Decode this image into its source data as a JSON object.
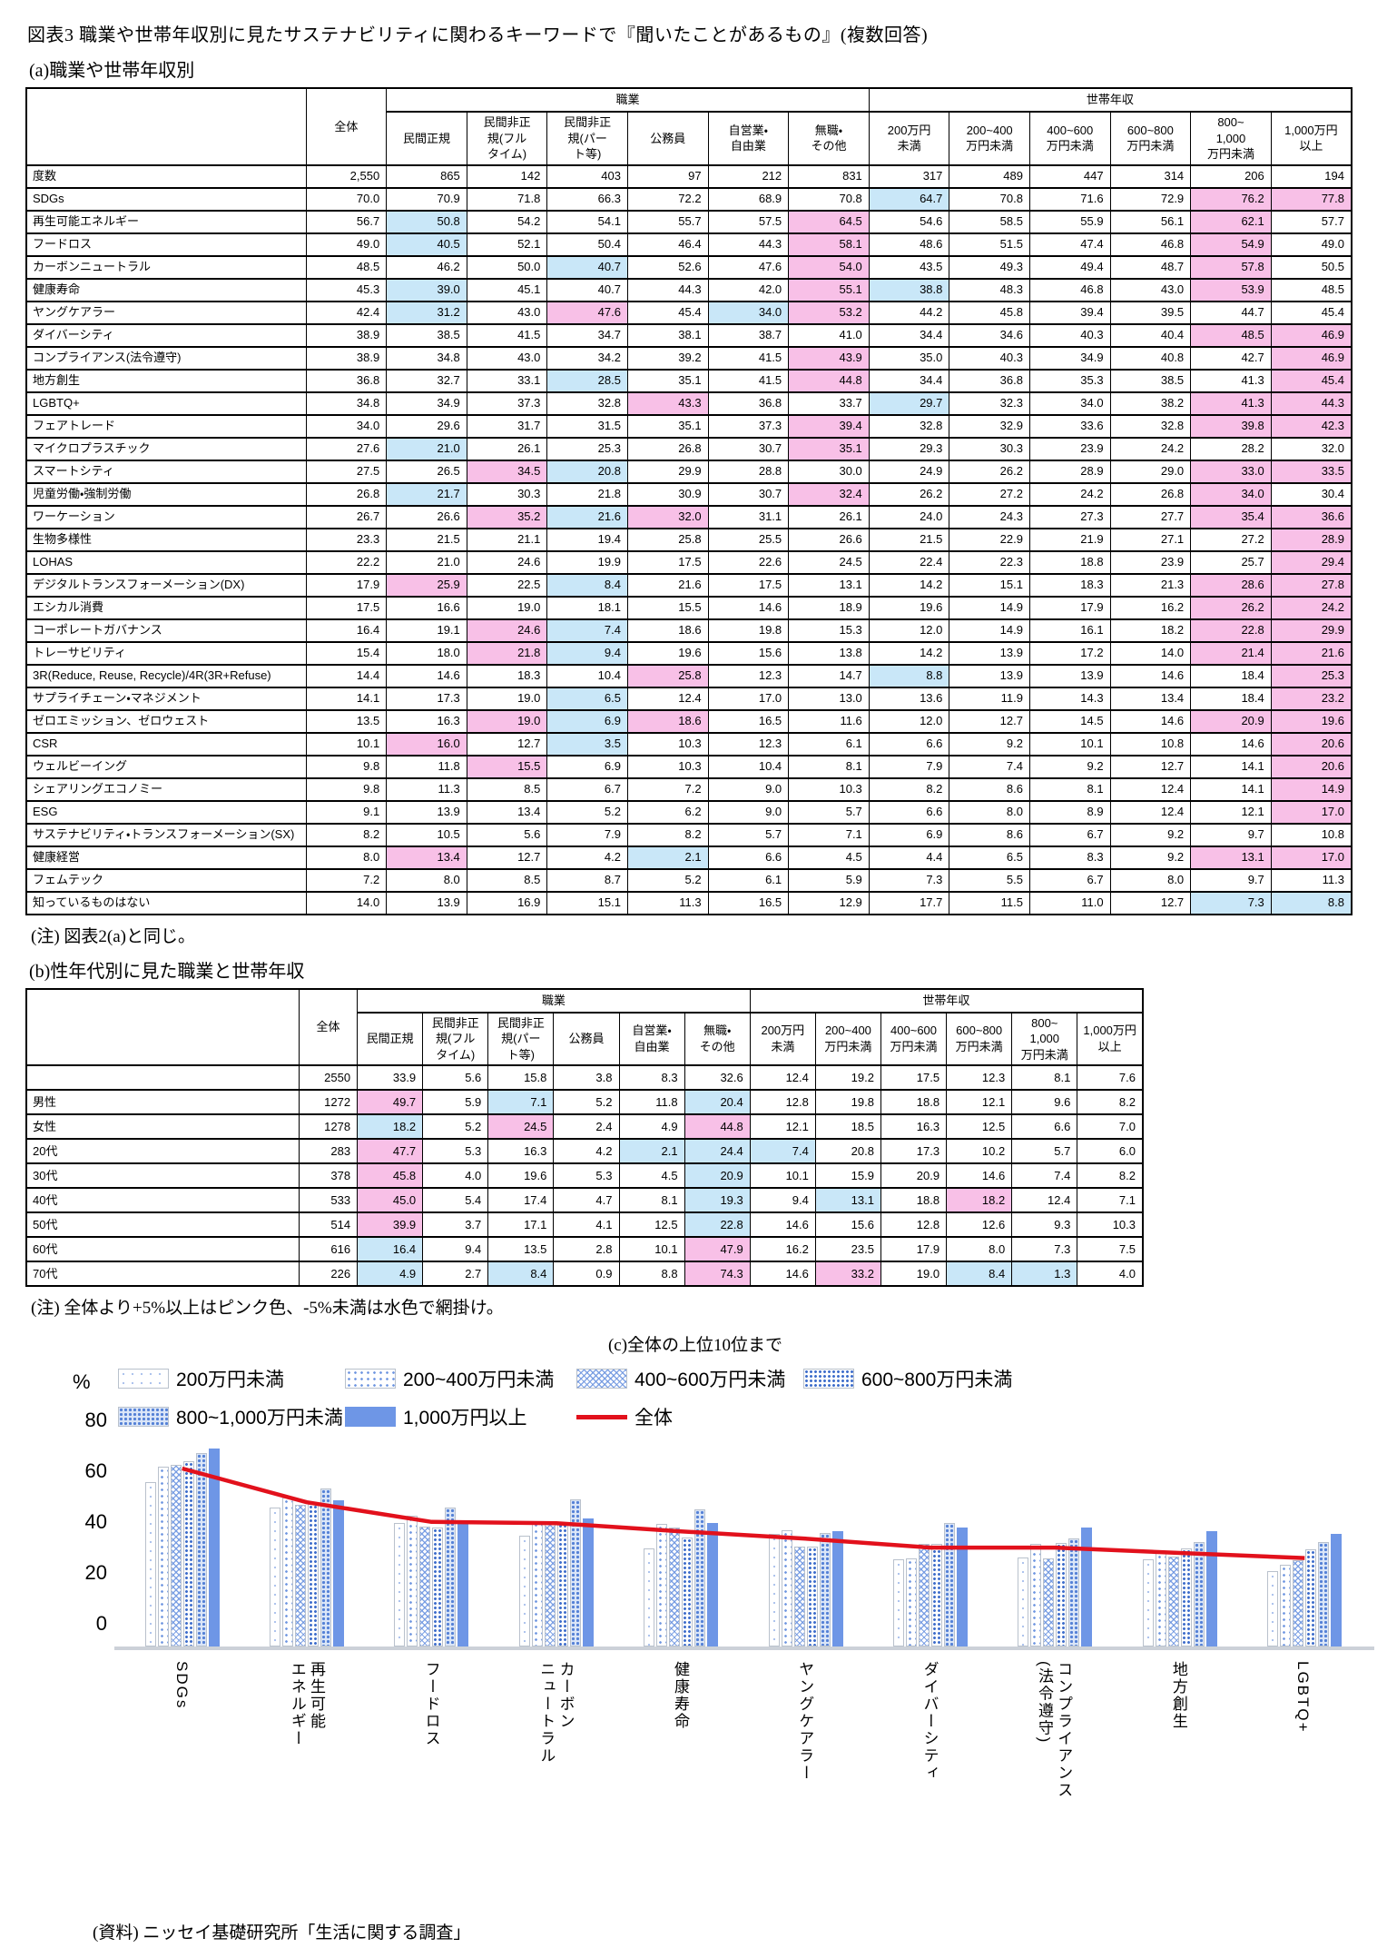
{
  "page": {
    "title": "図表3 職業や世帯年収別に見たサステナビリティに関わるキーワードで『聞いたことがあるもの』(複数回答)",
    "section_a_title": "(a)職業や世帯年収別",
    "note_a": "(注) 図表2(a)と同じ。",
    "section_b_title": "(b)性年代別に見た職業と世帯年収",
    "note_b": "(注) 全体より+5%以上はピンク色、-5%未満は水色で網掛け。",
    "section_c_title": "(c)全体の上位10位まで",
    "source": "(資料) ニッセイ基礎研究所「生活に関する調査」"
  },
  "colors": {
    "pink": "#f8c0e7",
    "light_blue": "#c9e7f8",
    "bar_solid": "#6e96e6",
    "line_red": "#e2111c"
  },
  "header": {
    "total": "全体",
    "groups": [
      {
        "label": "職業",
        "span": 6
      },
      {
        "label": "世帯年収",
        "span": 6
      }
    ],
    "columns": [
      "民間正規",
      "民間非正\n規(フル\nタイム)",
      "民間非正\n規(パー\nト等)",
      "公務員",
      "自営業・\n自由業",
      "無職・\nその他",
      "200万円\n未満",
      "200~400\n万円未満",
      "400~600\n万円未満",
      "600~800\n万円未満",
      "800~\n1,000\n万円未満",
      "1,000万円\n以上"
    ]
  },
  "table_a": {
    "rows": [
      {
        "label": "度数",
        "cells": [
          "2,550",
          "865",
          "142",
          "403",
          "97",
          "212",
          "831",
          "317",
          "489",
          "447",
          "314",
          "206",
          "194"
        ]
      },
      {
        "label": "SDGs",
        "cells": [
          "70.0",
          "70.9",
          "71.8",
          "66.3",
          "72.2",
          "68.9",
          "70.8",
          "64.7b",
          "70.8",
          "71.6",
          "72.9",
          "76.2p",
          "77.8p"
        ]
      },
      {
        "label": "再生可能エネルギー",
        "cells": [
          "56.7",
          "50.8b",
          "54.2",
          "54.1",
          "55.7",
          "57.5",
          "64.5p",
          "54.6",
          "58.5",
          "55.9",
          "56.1",
          "62.1p",
          "57.7"
        ]
      },
      {
        "label": "フードロス",
        "cells": [
          "49.0",
          "40.5b",
          "52.1",
          "50.4",
          "46.4",
          "44.3",
          "58.1p",
          "48.6",
          "51.5",
          "47.4",
          "46.8",
          "54.9p",
          "49.0"
        ]
      },
      {
        "label": "カーボンニュートラル",
        "cells": [
          "48.5",
          "46.2",
          "50.0",
          "40.7b",
          "52.6",
          "47.6",
          "54.0p",
          "43.5",
          "49.3",
          "49.4",
          "48.7",
          "57.8p",
          "50.5"
        ]
      },
      {
        "label": "健康寿命",
        "cells": [
          "45.3",
          "39.0b",
          "45.1",
          "40.7",
          "44.3",
          "42.0",
          "55.1p",
          "38.8b",
          "48.3",
          "46.8",
          "43.0",
          "53.9p",
          "48.5"
        ]
      },
      {
        "label": "ヤングケアラー",
        "cells": [
          "42.4",
          "31.2b",
          "43.0",
          "47.6p",
          "45.4",
          "34.0b",
          "53.2p",
          "44.2",
          "45.8",
          "39.4",
          "39.5",
          "44.7",
          "45.4"
        ]
      },
      {
        "label": "ダイバーシティ",
        "cells": [
          "38.9",
          "38.5",
          "41.5",
          "34.7",
          "38.1",
          "38.7",
          "41.0",
          "34.4",
          "34.6",
          "40.3",
          "40.4",
          "48.5p",
          "46.9p"
        ]
      },
      {
        "label": "コンプライアンス(法令遵守)",
        "cells": [
          "38.9",
          "34.8",
          "43.0",
          "34.2",
          "39.2",
          "41.5",
          "43.9p",
          "35.0",
          "40.3",
          "34.9",
          "40.8",
          "42.7",
          "46.9p"
        ]
      },
      {
        "label": "地方創生",
        "cells": [
          "36.8",
          "32.7",
          "33.1",
          "28.5b",
          "35.1",
          "41.5",
          "44.8p",
          "34.4",
          "36.8",
          "35.3",
          "38.5",
          "41.3",
          "45.4p"
        ]
      },
      {
        "label": "LGBTQ+",
        "cells": [
          "34.8",
          "34.9",
          "37.3",
          "32.8",
          "43.3p",
          "36.8",
          "33.7",
          "29.7b",
          "32.3",
          "34.0",
          "38.2",
          "41.3p",
          "44.3p"
        ]
      },
      {
        "label": "フェアトレード",
        "cells": [
          "34.0",
          "29.6",
          "31.7",
          "31.5",
          "35.1",
          "37.3",
          "39.4p",
          "32.8",
          "32.9",
          "33.6",
          "32.8",
          "39.8p",
          "42.3p"
        ]
      },
      {
        "label": "マイクロプラスチック",
        "cells": [
          "27.6",
          "21.0b",
          "26.1",
          "25.3",
          "26.8",
          "30.7",
          "35.1p",
          "29.3",
          "30.3",
          "23.9",
          "24.2",
          "28.2",
          "32.0"
        ]
      },
      {
        "label": "スマートシティ",
        "cells": [
          "27.5",
          "26.5",
          "34.5p",
          "20.8b",
          "29.9",
          "28.8",
          "30.0",
          "24.9",
          "26.2",
          "28.9",
          "29.0",
          "33.0p",
          "33.5p"
        ]
      },
      {
        "label": "児童労働・強制労働",
        "cells": [
          "26.8",
          "21.7b",
          "30.3",
          "21.8",
          "30.9",
          "30.7",
          "32.4p",
          "26.2",
          "27.2",
          "24.2",
          "26.8",
          "34.0p",
          "30.4"
        ]
      },
      {
        "label": "ワーケーション",
        "cells": [
          "26.7",
          "26.6",
          "35.2p",
          "21.6b",
          "32.0p",
          "31.1",
          "26.1",
          "24.0",
          "24.3",
          "27.3",
          "27.7",
          "35.4p",
          "36.6p"
        ]
      },
      {
        "label": "生物多様性",
        "cells": [
          "23.3",
          "21.5",
          "21.1",
          "19.4",
          "25.8",
          "25.5",
          "26.6",
          "21.5",
          "22.9",
          "21.9",
          "27.1",
          "27.2",
          "28.9p"
        ]
      },
      {
        "label": "LOHAS",
        "cells": [
          "22.2",
          "21.0",
          "24.6",
          "19.9",
          "17.5",
          "22.6",
          "24.5",
          "22.4",
          "22.3",
          "18.8",
          "23.9",
          "25.7",
          "29.4p"
        ]
      },
      {
        "label": "デジタルトランスフォーメーション(DX)",
        "cells": [
          "17.9",
          "25.9p",
          "22.5",
          "8.4b",
          "21.6",
          "17.5",
          "13.1",
          "14.2",
          "15.1",
          "18.3",
          "21.3",
          "28.6p",
          "27.8p"
        ]
      },
      {
        "label": "エシカル消費",
        "cells": [
          "17.5",
          "16.6",
          "19.0",
          "18.1",
          "15.5",
          "14.6",
          "18.9",
          "19.6",
          "14.9",
          "17.9",
          "16.2",
          "26.2p",
          "24.2p"
        ]
      },
      {
        "label": "コーポレートガバナンス",
        "cells": [
          "16.4",
          "19.1",
          "24.6p",
          "7.4b",
          "18.6",
          "19.8",
          "15.3",
          "12.0",
          "14.9",
          "16.1",
          "18.2",
          "22.8p",
          "29.9p"
        ]
      },
      {
        "label": "トレーサビリティ",
        "cells": [
          "15.4",
          "18.0",
          "21.8p",
          "9.4b",
          "19.6",
          "15.6",
          "13.8",
          "14.2",
          "13.9",
          "17.2",
          "14.0",
          "21.4p",
          "21.6p"
        ]
      },
      {
        "label": "3R(Reduce, Reuse, Recycle)/4R(3R+Refuse)",
        "cells": [
          "14.4",
          "14.6",
          "18.3",
          "10.4",
          "25.8p",
          "12.3",
          "14.7",
          "8.8b",
          "13.9",
          "13.9",
          "14.6",
          "18.4",
          "25.3p"
        ]
      },
      {
        "label": "サプライチェーン・マネジメント",
        "cells": [
          "14.1",
          "17.3",
          "19.0",
          "6.5b",
          "12.4",
          "17.0",
          "13.0",
          "13.6",
          "11.9",
          "14.3",
          "13.4",
          "18.4",
          "23.2p"
        ]
      },
      {
        "label": "ゼロエミッション、ゼロウェスト",
        "cells": [
          "13.5",
          "16.3",
          "19.0p",
          "6.9b",
          "18.6p",
          "16.5",
          "11.6",
          "12.0",
          "12.7",
          "14.5",
          "14.6",
          "20.9p",
          "19.6p"
        ]
      },
      {
        "label": "CSR",
        "cells": [
          "10.1",
          "16.0p",
          "12.7",
          "3.5b",
          "10.3",
          "12.3",
          "6.1",
          "6.6",
          "9.2",
          "10.1",
          "10.8",
          "14.6",
          "20.6p"
        ]
      },
      {
        "label": "ウェルビーイング",
        "cells": [
          "9.8",
          "11.8",
          "15.5p",
          "6.9",
          "10.3",
          "10.4",
          "8.1",
          "7.9",
          "7.4",
          "9.2",
          "12.7",
          "14.1",
          "20.6p"
        ]
      },
      {
        "label": "シェアリングエコノミー",
        "cells": [
          "9.8",
          "11.3",
          "8.5",
          "6.7",
          "7.2",
          "9.0",
          "10.3",
          "8.2",
          "8.6",
          "8.1",
          "12.4",
          "14.1",
          "14.9p"
        ]
      },
      {
        "label": "ESG",
        "cells": [
          "9.1",
          "13.9",
          "13.4",
          "5.2",
          "6.2",
          "9.0",
          "5.7",
          "6.6",
          "8.0",
          "8.9",
          "12.4",
          "12.1",
          "17.0p"
        ]
      },
      {
        "label": "サステナビリティ・トランスフォーメーション(SX)",
        "cells": [
          "8.2",
          "10.5",
          "5.6",
          "7.9",
          "8.2",
          "5.7",
          "7.1",
          "6.9",
          "8.6",
          "6.7",
          "9.2",
          "9.7",
          "10.8"
        ]
      },
      {
        "label": "健康経営",
        "cells": [
          "8.0",
          "13.4p",
          "12.7",
          "4.2",
          "2.1b",
          "6.6",
          "4.5",
          "4.4",
          "6.5",
          "8.3",
          "9.2",
          "13.1p",
          "17.0p"
        ]
      },
      {
        "label": "フェムテック",
        "cells": [
          "7.2",
          "8.0",
          "8.5",
          "8.7",
          "5.2",
          "6.1",
          "5.9",
          "7.3",
          "5.5",
          "6.7",
          "8.0",
          "9.7",
          "11.3"
        ]
      },
      {
        "label": "知っているものはない",
        "cells": [
          "14.0",
          "13.9",
          "16.9",
          "15.1",
          "11.3",
          "16.5",
          "12.9",
          "17.7",
          "11.5",
          "11.0",
          "12.7",
          "7.3b",
          "8.8b"
        ]
      }
    ]
  },
  "table_b": {
    "rows": [
      {
        "label": "",
        "cells": [
          "2550",
          "33.9",
          "5.6",
          "15.8",
          "3.8",
          "8.3",
          "32.6",
          "12.4",
          "19.2",
          "17.5",
          "12.3",
          "8.1",
          "7.6"
        ]
      },
      {
        "label": "男性",
        "cells": [
          "1272",
          "49.7p",
          "5.9",
          "7.1b",
          "5.2",
          "11.8",
          "20.4b",
          "12.8",
          "19.8",
          "18.8",
          "12.1",
          "9.6",
          "8.2"
        ]
      },
      {
        "label": "女性",
        "cells": [
          "1278",
          "18.2b",
          "5.2",
          "24.5p",
          "2.4",
          "4.9",
          "44.8p",
          "12.1",
          "18.5",
          "16.3",
          "12.5",
          "6.6",
          "7.0"
        ]
      },
      {
        "label": "20代",
        "cells": [
          "283",
          "47.7p",
          "5.3",
          "16.3",
          "4.2",
          "2.1b",
          "24.4b",
          "7.4b",
          "20.8",
          "17.3",
          "10.2",
          "5.7",
          "6.0"
        ]
      },
      {
        "label": "30代",
        "cells": [
          "378",
          "45.8p",
          "4.0",
          "19.6",
          "5.3",
          "4.5",
          "20.9b",
          "10.1",
          "15.9",
          "20.9",
          "14.6",
          "7.4",
          "8.2"
        ]
      },
      {
        "label": "40代",
        "cells": [
          "533",
          "45.0p",
          "5.4",
          "17.4",
          "4.7",
          "8.1",
          "19.3b",
          "9.4",
          "13.1b",
          "18.8",
          "18.2p",
          "12.4",
          "7.1"
        ]
      },
      {
        "label": "50代",
        "cells": [
          "514",
          "39.9p",
          "3.7",
          "17.1",
          "4.1",
          "12.5",
          "22.8b",
          "14.6",
          "15.6",
          "12.8",
          "12.6",
          "9.3",
          "10.3"
        ]
      },
      {
        "label": "60代",
        "cells": [
          "616",
          "16.4b",
          "9.4",
          "13.5",
          "2.8",
          "10.1",
          "47.9p",
          "16.2",
          "23.5",
          "17.9",
          "8.0",
          "7.3",
          "7.5"
        ]
      },
      {
        "label": "70代",
        "cells": [
          "226",
          "4.9b",
          "2.7",
          "8.4b",
          "0.9",
          "8.8",
          "74.3p",
          "14.6",
          "33.2p",
          "19.0",
          "8.4b",
          "1.3b",
          "4.0"
        ]
      }
    ]
  },
  "chart_data": {
    "type": "bar",
    "title": "(c)全体の上位10位まで",
    "unit": "%",
    "ylim": [
      0,
      80
    ],
    "yticks": [
      0,
      20,
      40,
      60,
      80
    ],
    "categories": [
      "SDGs",
      "再生可能\nエネルギー",
      "フードロス",
      "カーボン\nニュートラル",
      "健康寿命",
      "ヤングケアラー",
      "ダイバーシティ",
      "コンプライアンス\n(法令遵守)",
      "地方創生",
      "LGBTQ+"
    ],
    "series": [
      {
        "name": "200万円未満",
        "values": [
          64.7,
          54.6,
          48.6,
          43.5,
          38.8,
          44.2,
          34.4,
          35.0,
          34.4,
          29.7
        ]
      },
      {
        "name": "200~400万円未満",
        "values": [
          70.8,
          58.5,
          51.5,
          49.3,
          48.3,
          45.8,
          34.6,
          40.3,
          36.8,
          32.3
        ]
      },
      {
        "name": "400~600万円未満",
        "values": [
          71.6,
          55.9,
          47.4,
          49.4,
          46.8,
          39.4,
          40.3,
          34.9,
          35.3,
          34.0
        ]
      },
      {
        "name": "600~800万円未満",
        "values": [
          72.9,
          56.1,
          46.8,
          48.7,
          43.0,
          39.5,
          40.4,
          40.8,
          38.5,
          38.2
        ]
      },
      {
        "name": "800~1,000万円未満",
        "values": [
          76.2,
          62.1,
          54.9,
          57.8,
          53.9,
          44.7,
          48.5,
          42.7,
          41.3,
          41.3
        ]
      },
      {
        "name": "1,000万円以上",
        "values": [
          77.8,
          57.7,
          49.0,
          50.5,
          48.5,
          45.4,
          46.9,
          46.9,
          45.4,
          44.3
        ]
      }
    ],
    "line_series": {
      "name": "全体",
      "values": [
        70.0,
        56.7,
        49.0,
        48.5,
        45.3,
        42.4,
        38.9,
        38.9,
        36.8,
        34.8
      ]
    },
    "legend_position": "top"
  }
}
